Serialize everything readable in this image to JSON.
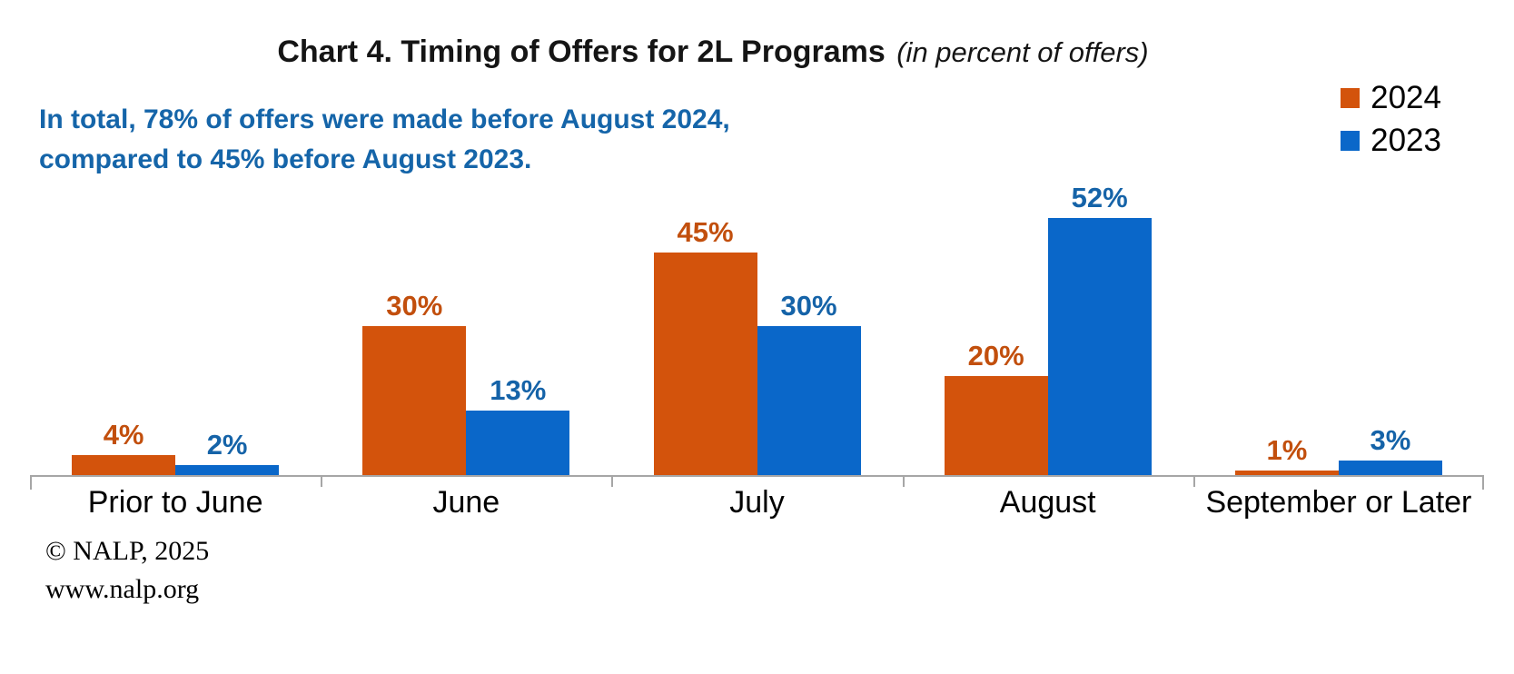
{
  "title": {
    "main": "Chart 4. Timing of Offers for 2L Programs",
    "note": "(in percent of offers)"
  },
  "subtitle": {
    "text": "In total, 78% of offers were made before August 2024,\ncompared to 45% before August 2023."
  },
  "footer": {
    "copyright": "© NALP, 2025",
    "website": "www.nalp.org"
  },
  "colors": {
    "bar_2024": "#D3530C",
    "bar_2023": "#0A67C9",
    "label_2024": "#C24F0D",
    "label_2023": "#1563A8",
    "subtitle_blue": "#1565A9",
    "axis_gray": "#A6A6A6"
  },
  "chart_data": {
    "type": "bar",
    "title": "Chart 4. Timing of Offers for 2L Programs (in percent of offers)",
    "categories": [
      "Prior to June",
      "June",
      "July",
      "August",
      "September or Later"
    ],
    "series": [
      {
        "name": "2024",
        "values": [
          4,
          30,
          45,
          20,
          1
        ],
        "color": "#D3530C",
        "label_color": "#C24F0D"
      },
      {
        "name": "2023",
        "values": [
          2,
          13,
          30,
          52,
          3
        ],
        "color": "#0A67C9",
        "label_color": "#1563A8"
      }
    ],
    "value_suffix": "%",
    "ylim": [
      0,
      60
    ],
    "grid": false,
    "data_labels": true,
    "legend_position": "top-right",
    "annotation": "In total, 78% of offers were made before August 2024, compared to 45% before August 2023."
  }
}
